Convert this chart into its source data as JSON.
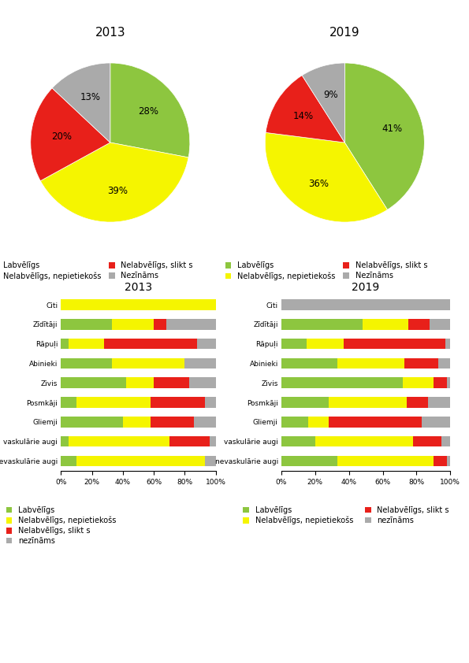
{
  "green": "#8dc63f",
  "yellow": "#f5f500",
  "red": "#e8201a",
  "gray": "#aaaaaa",
  "pie_2013_title": "2013",
  "pie_2019_title": "2019",
  "pie_2013_vals": [
    28,
    39,
    20,
    13
  ],
  "pie_2019_vals": [
    41,
    36,
    14,
    9
  ],
  "pie_2013_pcts": [
    "28%",
    "39%",
    "20%",
    "13%"
  ],
  "pie_2019_pcts": [
    "41%",
    "36%",
    "14%",
    "9%"
  ],
  "pie_legend_labels": [
    "Labvēlīgs",
    "Nelabvēlīgs, nepietiekošs",
    "Nelabvēlīgs, slikt s",
    "Nezīnāms"
  ],
  "bar_categories": [
    "Citi",
    "Zīdītāji",
    "Rāpuļi",
    "Abinieki",
    "Zivis",
    "Posmkāji",
    "Gliemji",
    "vaskulārie augi",
    "nevaskulārie augi"
  ],
  "bar_2013_title": "2013",
  "bar_2019_title": "2019",
  "b2013_green": [
    0,
    33,
    5,
    33,
    42,
    10,
    40,
    5,
    10
  ],
  "b2013_yellow": [
    100,
    27,
    23,
    47,
    18,
    48,
    18,
    65,
    83
  ],
  "b2013_red": [
    0,
    8,
    60,
    0,
    23,
    35,
    28,
    26,
    0
  ],
  "b2013_gray": [
    0,
    32,
    12,
    20,
    17,
    7,
    14,
    4,
    7
  ],
  "b2019_green": [
    0,
    48,
    15,
    33,
    72,
    28,
    16,
    20,
    33
  ],
  "b2019_yellow": [
    0,
    27,
    22,
    40,
    18,
    46,
    12,
    58,
    57
  ],
  "b2019_red": [
    0,
    13,
    60,
    20,
    8,
    13,
    55,
    17,
    8
  ],
  "b2019_gray": [
    100,
    12,
    3,
    7,
    2,
    13,
    17,
    5,
    2
  ],
  "bar_legend_labels": [
    "Labvēlīgs",
    "Nelabvēlīgs, nepietiekošs",
    "Nelabvēlīgs, slikt s",
    "nezīnāms"
  ]
}
